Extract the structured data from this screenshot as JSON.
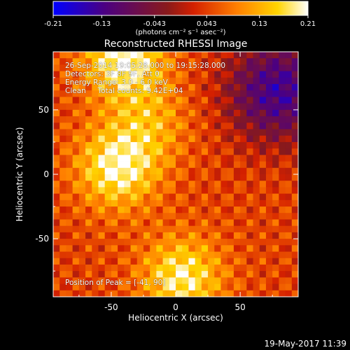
{
  "chart_data": {
    "type": "heatmap",
    "title": "Reconstructed RHESSI Image",
    "xlabel": "Heliocentric X (arcsec)",
    "ylabel": "Heliocentric Y (arcsec)",
    "xlim": [
      -95,
      95
    ],
    "ylim": [
      -95,
      95
    ],
    "x_ticks": [
      -50,
      0,
      50
    ],
    "y_ticks": [
      -50,
      0,
      50
    ],
    "colorbar": {
      "range": [
        -0.21,
        0.21
      ],
      "tick_values": [
        -0.21,
        -0.13,
        -0.043,
        0.043,
        0.13,
        0.21
      ],
      "tick_labels": [
        "-0.21",
        "-0.13",
        "-0.043",
        "0.043",
        "0.13",
        "0.21"
      ],
      "units": "(photons cm⁻² s⁻¹ asec⁻²)",
      "colors": [
        "#0000ff",
        "#4b0082",
        "#8a1a1a",
        "#d42000",
        "#ff7f00",
        "#ffd400",
        "#ffffff"
      ]
    },
    "grid": false,
    "peak_regions": [
      {
        "x": -45,
        "y": 5,
        "level": 0.2
      },
      {
        "x": -40,
        "y": 90,
        "level": 0.21
      },
      {
        "x": 5,
        "y": -80,
        "level": 0.19
      },
      {
        "x": -20,
        "y": 40,
        "level": 0.12
      }
    ],
    "negative_region": {
      "x": 80,
      "y": 65,
      "level": -0.13
    }
  },
  "annotations": {
    "time_line": "26-Sep-2014 19:05:28.000 to 19:15:28.000",
    "detectors_line": "Detectors: 3F 8F 9F, Att 0",
    "energy_line": "Energy Range: 3.0 - 6.0 keV",
    "clean_line": "Clean     Total counts: 9.42E+04",
    "peak_line": "Position of Peak = [-41, 90]"
  },
  "footer": {
    "timestamp": "19-May-2017 11:39"
  }
}
